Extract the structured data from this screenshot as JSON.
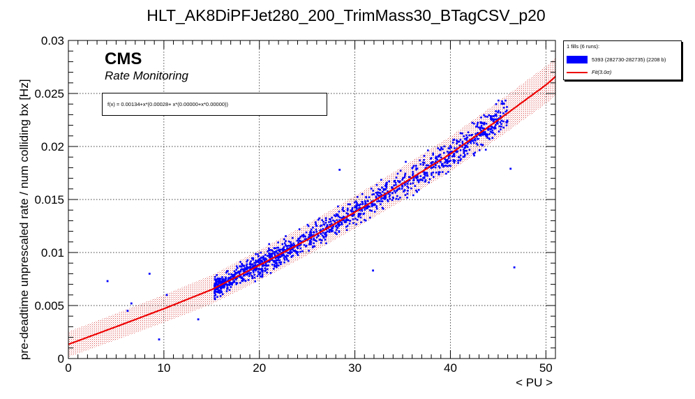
{
  "chart_data": {
    "type": "scatter",
    "title": "HLT_AK8DiPFJet280_200_TrimMass30_BTagCSV_p20",
    "xlabel": "< PU >",
    "ylabel": "pre-deadtime unprescaled rate / num colliding bx [Hz]",
    "xlim": [
      0,
      51
    ],
    "ylim": [
      0,
      0.03
    ],
    "x_ticks": [
      "0",
      "10",
      "20",
      "30",
      "40",
      "50"
    ],
    "y_ticks": [
      "0",
      "0.005",
      "0.01",
      "0.015",
      "0.02",
      "0.025",
      "0.03"
    ],
    "grid": true,
    "cms_label": "CMS",
    "cms_sublabel": "Rate Monitoring",
    "fit_formula": "f(x) = 0.00134+x*(0.00028+ x*(0.00000+x*0.00000))",
    "fit": {
      "name": "Fit(3.0σ)",
      "color": "#ee0000",
      "band_sigma": 3.0,
      "curve_x": [
        0,
        5,
        10,
        15,
        20,
        25,
        30,
        35,
        40,
        45,
        50,
        51
      ],
      "curve_y": [
        0.00134,
        0.003,
        0.0047,
        0.0065,
        0.0088,
        0.0112,
        0.0138,
        0.0165,
        0.0193,
        0.0225,
        0.0258,
        0.0266
      ],
      "band_halfwidth": 0.0014
    },
    "legend": {
      "header": "1 fills (6 runs):",
      "position": "top-right",
      "entries": [
        {
          "label": "5393 (282730-282735) (2208 b)",
          "kind": "fill",
          "color": "#0000ff"
        },
        {
          "label": "Fit(3.0σ)",
          "kind": "line",
          "color": "#ee0000"
        }
      ]
    },
    "series": [
      {
        "name": "5393 (282730-282735) (2208 b)",
        "color": "#0000ff",
        "marker": "square",
        "main_cloud": {
          "x_range": [
            15.3,
            46.0
          ],
          "count": 2208
        },
        "outliers": {
          "x": [
            4.1,
            6.2,
            6.6,
            8.5,
            9.5,
            10.3,
            13.6,
            28.4,
            29.5,
            31.9,
            44.4,
            46.3,
            46.7
          ],
          "y": [
            0.0073,
            0.0045,
            0.0052,
            0.008,
            0.0018,
            0.006,
            0.0037,
            0.0178,
            0.013,
            0.0083,
            0.0208,
            0.0179,
            0.0086
          ]
        }
      }
    ]
  }
}
